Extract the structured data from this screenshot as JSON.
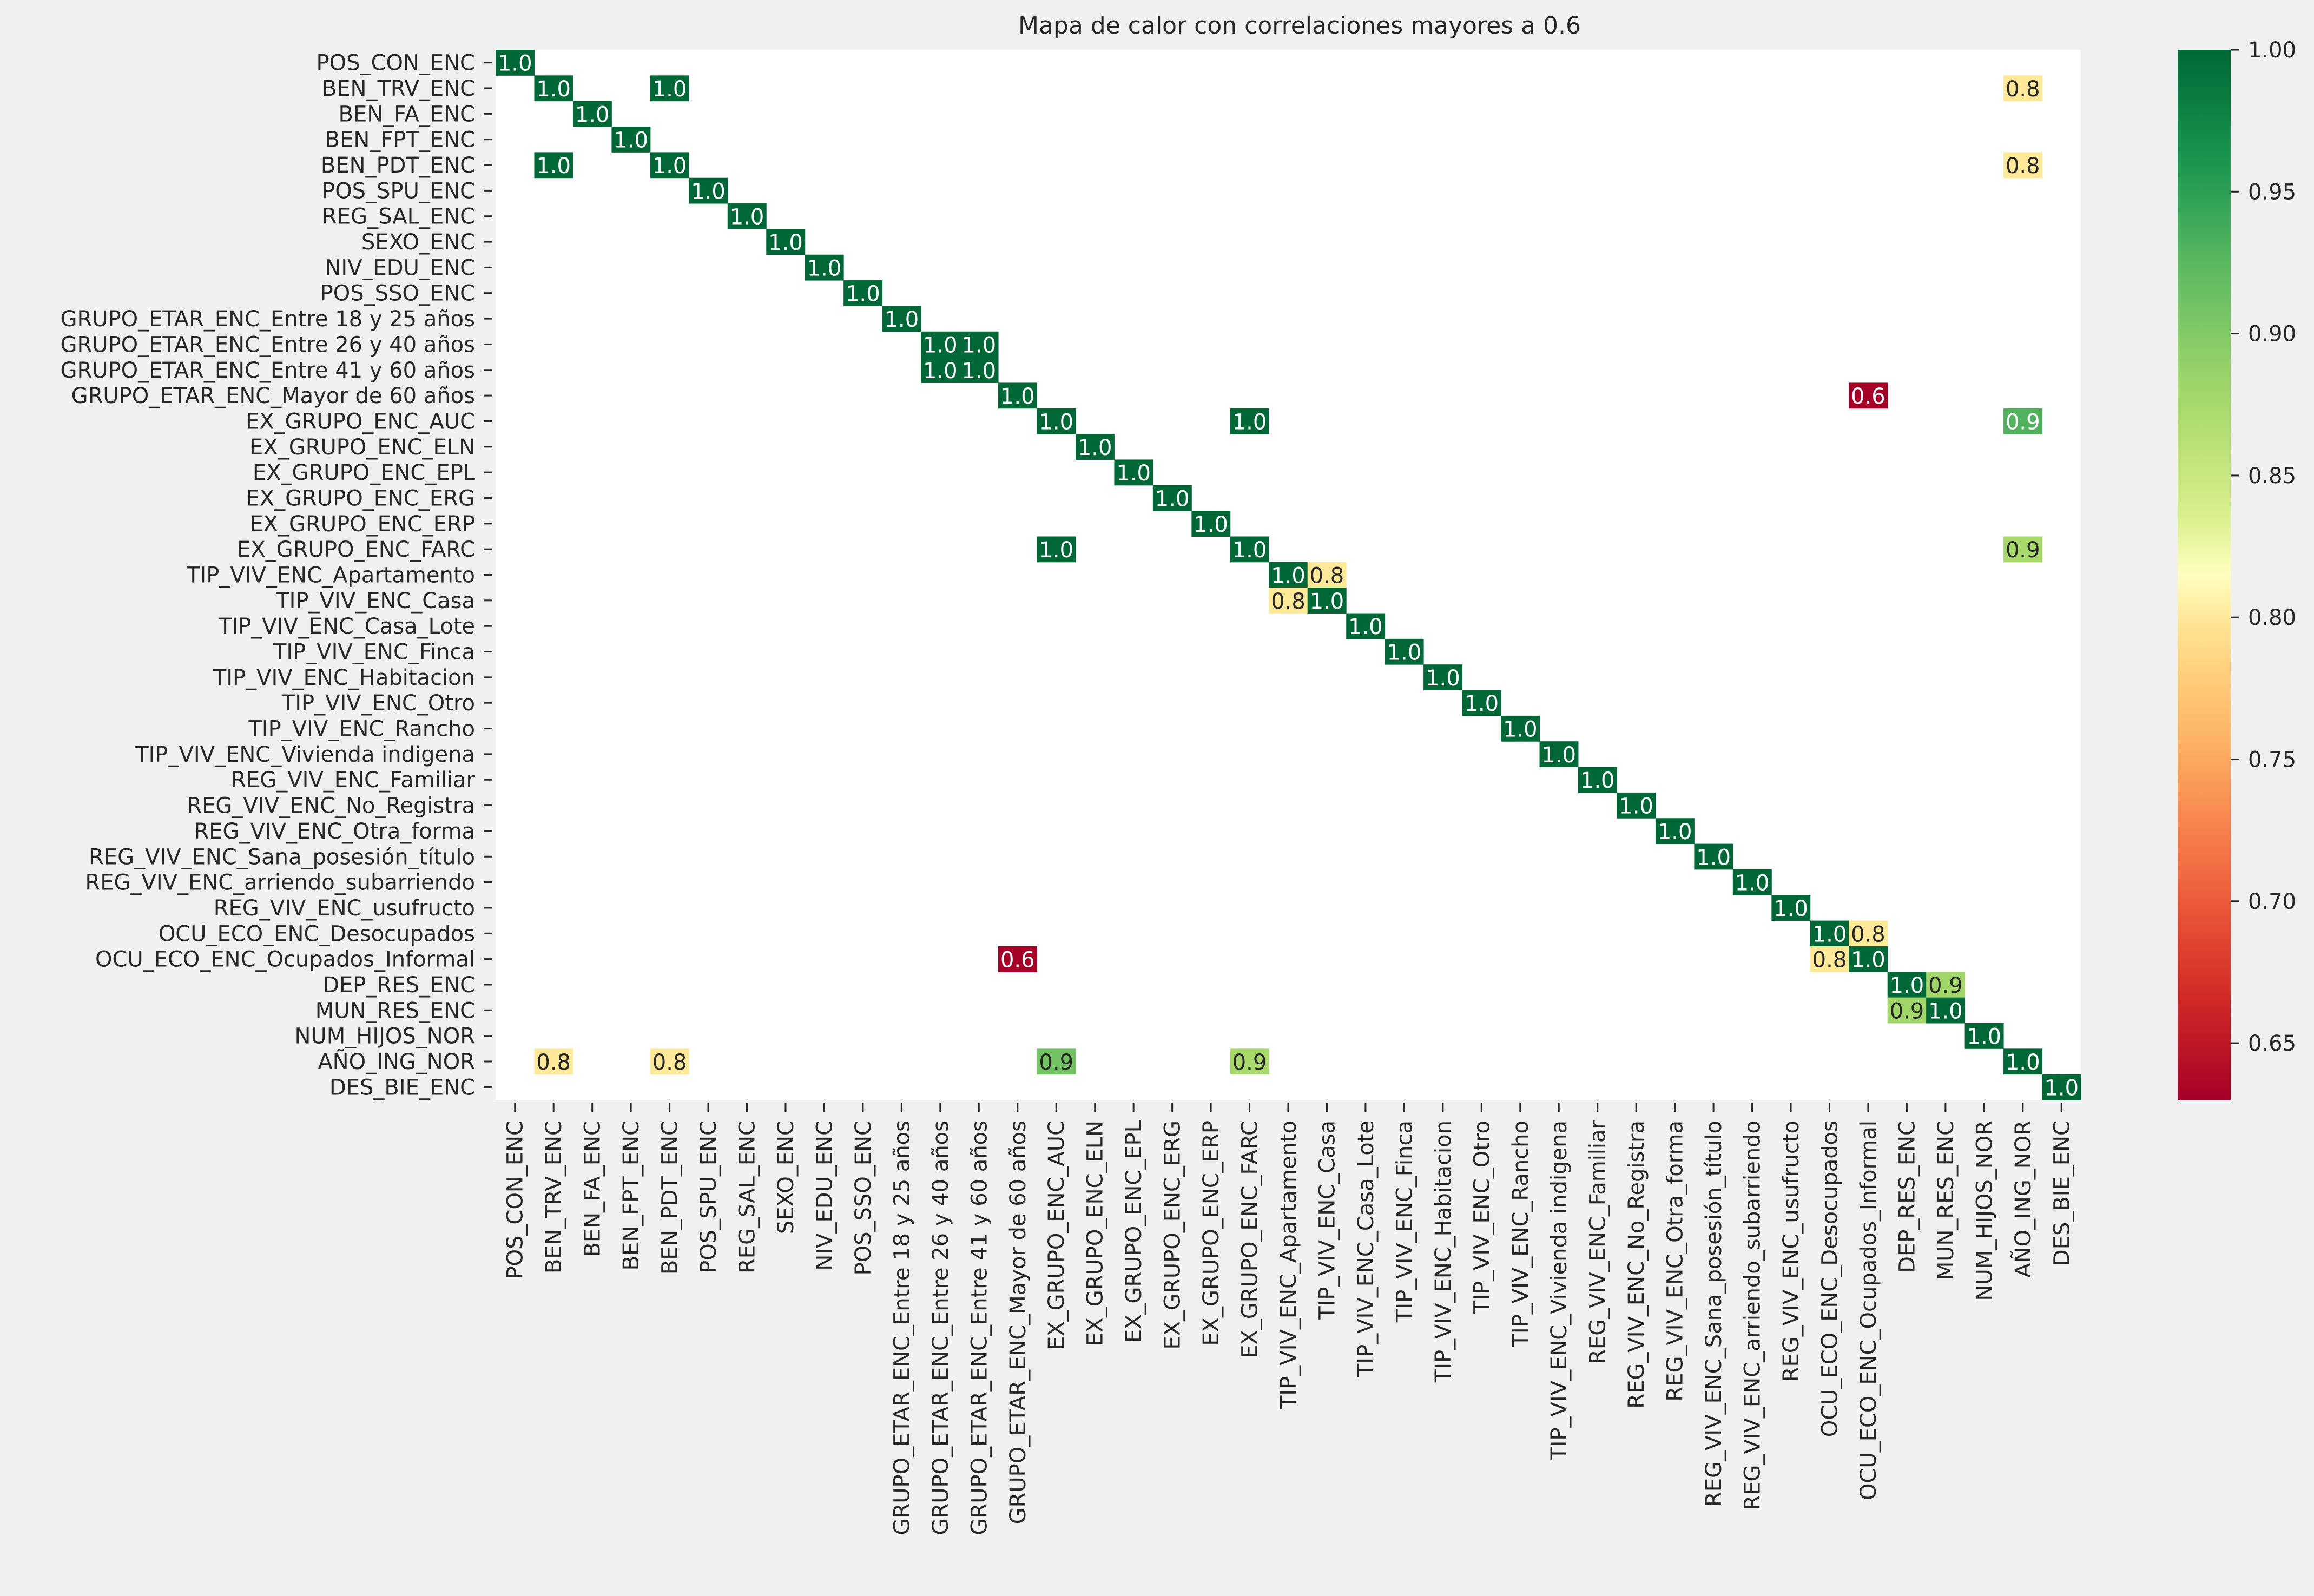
{
  "chart_data": {
    "type": "heatmap",
    "title": "Mapa de calor con correlaciones mayores a 0.6",
    "xlabel": "",
    "ylabel": "",
    "labels": [
      "POS_CON_ENC",
      "BEN_TRV_ENC",
      "BEN_FA_ENC",
      "BEN_FPT_ENC",
      "BEN_PDT_ENC",
      "POS_SPU_ENC",
      "REG_SAL_ENC",
      "SEXO_ENC",
      "NIV_EDU_ENC",
      "POS_SSO_ENC",
      "GRUPO_ETAR_ENC_Entre 18 y 25 años",
      "GRUPO_ETAR_ENC_Entre 26 y 40 años",
      "GRUPO_ETAR_ENC_Entre 41 y 60 años",
      "GRUPO_ETAR_ENC_Mayor de 60 años",
      "EX_GRUPO_ENC_AUC",
      "EX_GRUPO_ENC_ELN",
      "EX_GRUPO_ENC_EPL",
      "EX_GRUPO_ENC_ERG",
      "EX_GRUPO_ENC_ERP",
      "EX_GRUPO_ENC_FARC",
      "TIP_VIV_ENC_Apartamento",
      "TIP_VIV_ENC_Casa",
      "TIP_VIV_ENC_Casa_Lote",
      "TIP_VIV_ENC_Finca",
      "TIP_VIV_ENC_Habitacion",
      "TIP_VIV_ENC_Otro",
      "TIP_VIV_ENC_Rancho",
      "TIP_VIV_ENC_Vivienda indigena",
      "REG_VIV_ENC_Familiar",
      "REG_VIV_ENC_No_Registra",
      "REG_VIV_ENC_Otra_forma",
      "REG_VIV_ENC_Sana_posesión_título",
      "REG_VIV_ENC_arriendo_subarriendo",
      "REG_VIV_ENC_usufructo",
      "OCU_ECO_ENC_Desocupados",
      "OCU_ECO_ENC_Ocupados_Informal",
      "DEP_RES_ENC",
      "MUN_RES_ENC",
      "NUM_HIJOS_NOR",
      "AÑO_ING_NOR",
      "DES_BIE_ENC"
    ],
    "cells": [
      {
        "row": 0,
        "col": 0,
        "value": 1.0
      },
      {
        "row": 1,
        "col": 1,
        "value": 1.0
      },
      {
        "row": 1,
        "col": 4,
        "value": 1.0
      },
      {
        "row": 1,
        "col": 39,
        "value": 0.8
      },
      {
        "row": 2,
        "col": 2,
        "value": 1.0
      },
      {
        "row": 3,
        "col": 3,
        "value": 1.0
      },
      {
        "row": 4,
        "col": 1,
        "value": 1.0
      },
      {
        "row": 4,
        "col": 4,
        "value": 1.0
      },
      {
        "row": 4,
        "col": 39,
        "value": 0.8
      },
      {
        "row": 5,
        "col": 5,
        "value": 1.0
      },
      {
        "row": 6,
        "col": 6,
        "value": 1.0
      },
      {
        "row": 7,
        "col": 7,
        "value": 1.0
      },
      {
        "row": 8,
        "col": 8,
        "value": 1.0
      },
      {
        "row": 9,
        "col": 9,
        "value": 1.0
      },
      {
        "row": 10,
        "col": 10,
        "value": 1.0
      },
      {
        "row": 11,
        "col": 11,
        "value": 1.0
      },
      {
        "row": 11,
        "col": 12,
        "value": 1.0
      },
      {
        "row": 12,
        "col": 11,
        "value": 1.0
      },
      {
        "row": 12,
        "col": 12,
        "value": 1.0
      },
      {
        "row": 13,
        "col": 13,
        "value": 1.0
      },
      {
        "row": 13,
        "col": 35,
        "value": 0.6
      },
      {
        "row": 14,
        "col": 14,
        "value": 1.0
      },
      {
        "row": 14,
        "col": 19,
        "value": 1.0
      },
      {
        "row": 14,
        "col": 39,
        "value": 0.9
      },
      {
        "row": 15,
        "col": 15,
        "value": 1.0
      },
      {
        "row": 16,
        "col": 16,
        "value": 1.0
      },
      {
        "row": 17,
        "col": 17,
        "value": 1.0
      },
      {
        "row": 18,
        "col": 18,
        "value": 1.0
      },
      {
        "row": 19,
        "col": 14,
        "value": 1.0
      },
      {
        "row": 19,
        "col": 19,
        "value": 1.0
      },
      {
        "row": 19,
        "col": 39,
        "value": 0.9
      },
      {
        "row": 20,
        "col": 20,
        "value": 1.0
      },
      {
        "row": 20,
        "col": 21,
        "value": 0.8
      },
      {
        "row": 21,
        "col": 20,
        "value": 0.8
      },
      {
        "row": 21,
        "col": 21,
        "value": 1.0
      },
      {
        "row": 22,
        "col": 22,
        "value": 1.0
      },
      {
        "row": 23,
        "col": 23,
        "value": 1.0
      },
      {
        "row": 24,
        "col": 24,
        "value": 1.0
      },
      {
        "row": 25,
        "col": 25,
        "value": 1.0
      },
      {
        "row": 26,
        "col": 26,
        "value": 1.0
      },
      {
        "row": 27,
        "col": 27,
        "value": 1.0
      },
      {
        "row": 28,
        "col": 28,
        "value": 1.0
      },
      {
        "row": 29,
        "col": 29,
        "value": 1.0
      },
      {
        "row": 30,
        "col": 30,
        "value": 1.0
      },
      {
        "row": 31,
        "col": 31,
        "value": 1.0
      },
      {
        "row": 32,
        "col": 32,
        "value": 1.0
      },
      {
        "row": 33,
        "col": 33,
        "value": 1.0
      },
      {
        "row": 34,
        "col": 34,
        "value": 1.0
      },
      {
        "row": 34,
        "col": 35,
        "value": 0.8
      },
      {
        "row": 35,
        "col": 13,
        "value": 0.6
      },
      {
        "row": 35,
        "col": 34,
        "value": 0.8
      },
      {
        "row": 35,
        "col": 35,
        "value": 1.0
      },
      {
        "row": 36,
        "col": 36,
        "value": 1.0
      },
      {
        "row": 36,
        "col": 37,
        "value": 0.9
      },
      {
        "row": 37,
        "col": 36,
        "value": 0.9
      },
      {
        "row": 37,
        "col": 37,
        "value": 1.0
      },
      {
        "row": 38,
        "col": 38,
        "value": 1.0
      },
      {
        "row": 39,
        "col": 1,
        "value": 0.8
      },
      {
        "row": 39,
        "col": 4,
        "value": 0.8
      },
      {
        "row": 39,
        "col": 14,
        "value": 0.9
      },
      {
        "row": 39,
        "col": 19,
        "value": 0.9
      },
      {
        "row": 39,
        "col": 39,
        "value": 1.0
      },
      {
        "row": 40,
        "col": 40,
        "value": 1.0
      }
    ],
    "color_values": {
      "1": 1.0,
      "0.9_strong": 0.93,
      "0.9_mid": 0.88,
      "0.9_light": 0.87,
      "0.8": 0.8,
      "0.6": 0.63
    },
    "colorbar": {
      "cmap": "RdYlGn",
      "range": [
        0.63,
        1.0
      ],
      "ticks": [
        "0.65",
        "0.70",
        "0.75",
        "0.80",
        "0.85",
        "0.90",
        "0.95",
        "1.00"
      ]
    },
    "colors": {
      "background": "#f0f0f0",
      "plot_background": "#ffffff"
    }
  }
}
